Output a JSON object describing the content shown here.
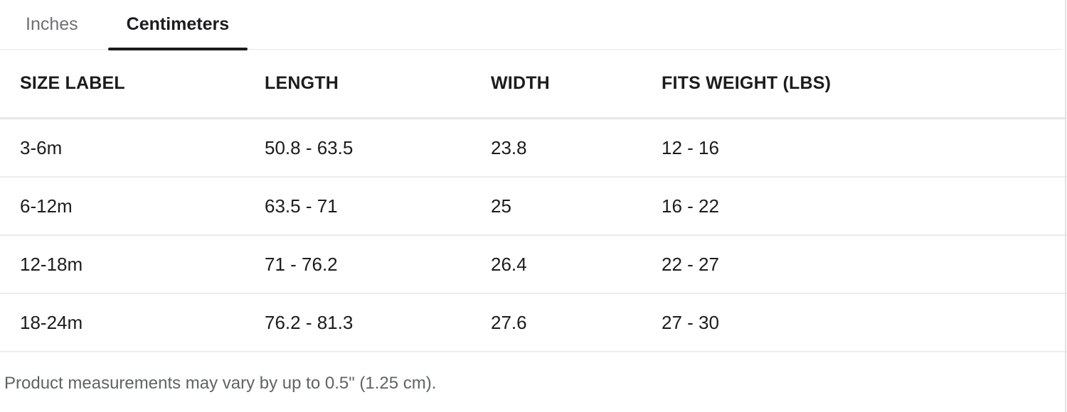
{
  "tabs": [
    {
      "id": "inches",
      "label": "Inches",
      "active": false
    },
    {
      "id": "centimeters",
      "label": "Centimeters",
      "active": true
    }
  ],
  "table": {
    "columns": [
      "SIZE LABEL",
      "LENGTH",
      "WIDTH",
      "FITS WEIGHT (LBS)"
    ],
    "column_keys": [
      "size-label",
      "length",
      "width",
      "fits-weight"
    ],
    "rows": [
      [
        "3-6m",
        "50.8 - 63.5",
        "23.8",
        "12 - 16"
      ],
      [
        "6-12m",
        "63.5 - 71",
        "25",
        "16 - 22"
      ],
      [
        "12-18m",
        "71 - 76.2",
        "26.4",
        "22 - 27"
      ],
      [
        "18-24m",
        "76.2 - 81.3",
        "27.6",
        "27 - 30"
      ]
    ]
  },
  "footer": {
    "note": "Product measurements may vary by up to 0.5\" (1.25 cm)."
  },
  "colors": {
    "active_tab_text": "#1c1c1e",
    "inactive_tab_text": "#6d7074",
    "active_tab_underline": "#1c1c1e",
    "divider": "#ececec",
    "header_divider": "#e7e7e7",
    "footer_text": "#5f6368",
    "background": "#ffffff"
  }
}
